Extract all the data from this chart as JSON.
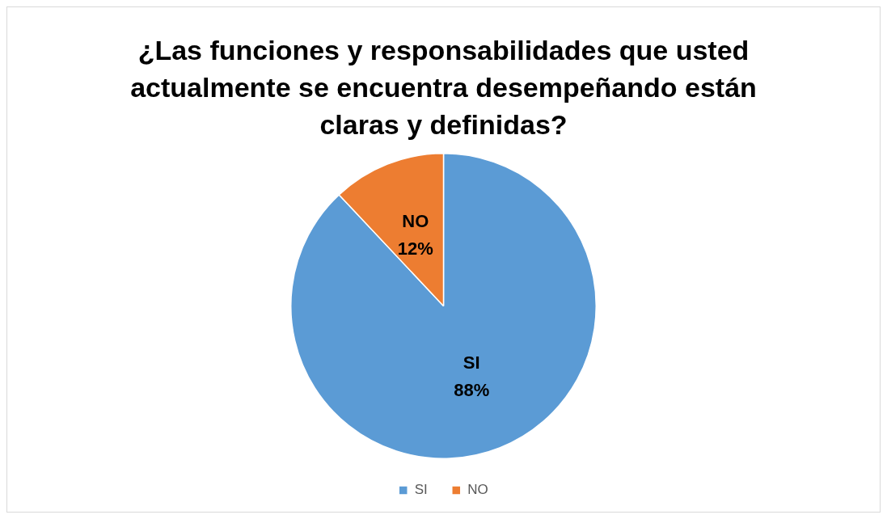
{
  "chart_data": {
    "type": "pie",
    "title": "¿Las funciones y responsabilidades que usted actualmente se encuentra desempeñando están claras y definidas?",
    "categories": [
      "SI",
      "NO"
    ],
    "values": [
      88,
      12
    ],
    "colors": [
      "#5b9bd5",
      "#ed7d31"
    ],
    "value_labels": [
      "88%",
      "12%"
    ],
    "legend": "bottom"
  }
}
